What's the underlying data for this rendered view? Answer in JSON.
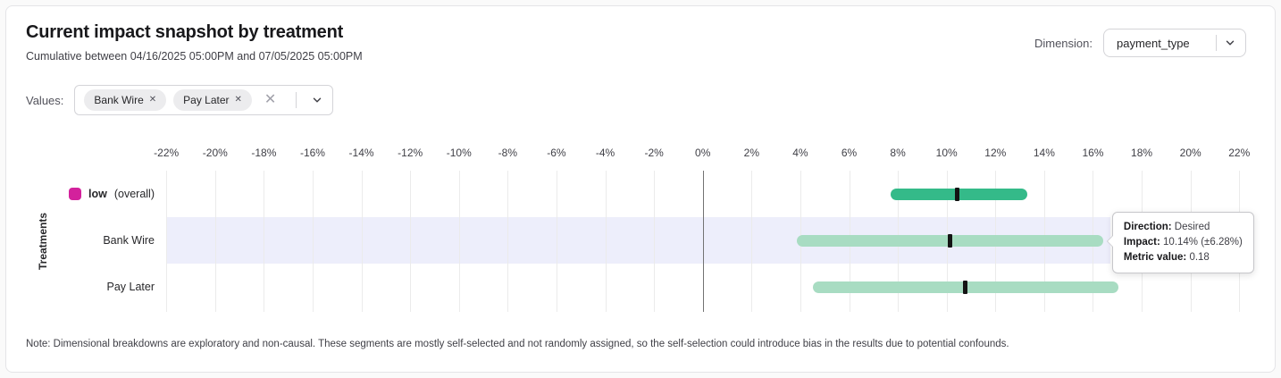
{
  "card": {
    "title": "Current impact snapshot by treatment",
    "subtitle": "Cumulative between 04/16/2025 05:00PM and 07/05/2025 05:00PM",
    "note": "Note: Dimensional breakdowns are exploratory and non-causal. These segments are mostly self-selected and not randomly assigned, so the self-selection could introduce bias in the results due to potential confounds."
  },
  "dimension": {
    "label": "Dimension:",
    "value": "payment_type"
  },
  "values_filter": {
    "label": "Values:",
    "chips": [
      {
        "label": "Bank Wire"
      },
      {
        "label": "Pay Later"
      }
    ]
  },
  "tooltip": {
    "direction_label": "Direction:",
    "direction_value": "Desired",
    "impact_label": "Impact:",
    "impact_value": "10.14% (±6.28%)",
    "metric_label": "Metric value:",
    "metric_value": "0.18"
  },
  "chart_data": {
    "type": "bar",
    "subtype": "horizontal-confidence-intervals",
    "title": "Current impact snapshot by treatment",
    "xlabel": "",
    "ylabel": "Treatments",
    "x_unit": "%",
    "axis": {
      "min": -22.63,
      "max": 22.87,
      "tick_step": 2,
      "zero_line": true
    },
    "ticks": [
      {
        "v": -22,
        "label": "-22%"
      },
      {
        "v": -20,
        "label": "-20%"
      },
      {
        "v": -18,
        "label": "-18%"
      },
      {
        "v": -16,
        "label": "-16%"
      },
      {
        "v": -14,
        "label": "-14%"
      },
      {
        "v": -12,
        "label": "-12%"
      },
      {
        "v": -10,
        "label": "-10%"
      },
      {
        "v": -8,
        "label": "-8%"
      },
      {
        "v": -6,
        "label": "-6%"
      },
      {
        "v": -4,
        "label": "-4%"
      },
      {
        "v": -2,
        "label": "-2%"
      },
      {
        "v": 0,
        "label": "0%"
      },
      {
        "v": 2,
        "label": "2%"
      },
      {
        "v": 4,
        "label": "4%"
      },
      {
        "v": 6,
        "label": "6%"
      },
      {
        "v": 8,
        "label": "8%"
      },
      {
        "v": 10,
        "label": "10%"
      },
      {
        "v": 12,
        "label": "12%"
      },
      {
        "v": 14,
        "label": "14%"
      },
      {
        "v": 16,
        "label": "16%"
      },
      {
        "v": 18,
        "label": "18%"
      },
      {
        "v": 20,
        "label": "20%"
      },
      {
        "v": 22,
        "label": "22%"
      }
    ],
    "rows": [
      {
        "name": "low (overall)",
        "label_main": "low",
        "label_suffix": "(overall)",
        "swatch_color": "#d3219c",
        "bar_color": "#34ba89",
        "center": 10.45,
        "lo": 7.7,
        "hi": 13.3,
        "highlighted": false
      },
      {
        "name": "Bank Wire",
        "label_main": "Bank Wire",
        "bar_color": "#a8dcc2",
        "center": 10.14,
        "moe": 6.28,
        "lo": 3.86,
        "hi": 16.42,
        "highlighted": true,
        "direction": "Desired",
        "metric_value": 0.18
      },
      {
        "name": "Pay Later",
        "label_main": "Pay Later",
        "bar_color": "#a8dcc2",
        "center": 10.78,
        "lo": 4.5,
        "hi": 17.05,
        "highlighted": false
      }
    ],
    "highlight_band_color": "#edeefb",
    "grid": true,
    "legend_position": "none"
  }
}
